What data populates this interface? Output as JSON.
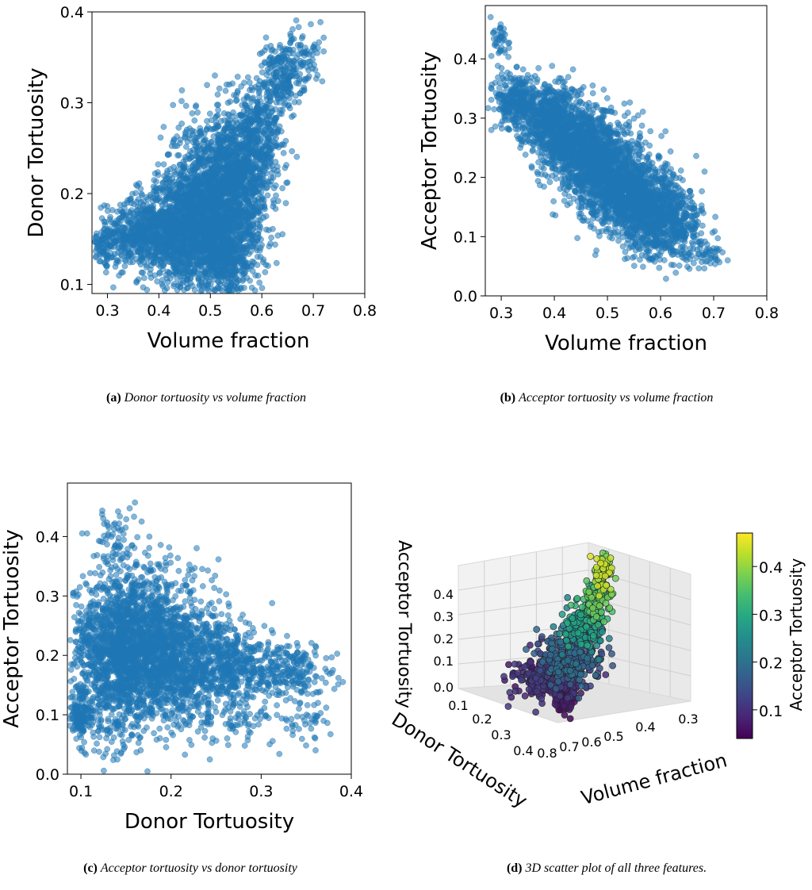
{
  "chart_data": [
    {
      "id": "a",
      "type": "scatter",
      "xlabel": "Volume fraction",
      "ylabel": "Donor Tortuosity",
      "xlim": [
        0.27,
        0.8
      ],
      "ylim": [
        0.09,
        0.4
      ],
      "xticks": [
        "0.3",
        "0.4",
        "0.5",
        "0.6",
        "0.7",
        "0.8"
      ],
      "yticks": [
        "0.1",
        "0.2",
        "0.3",
        "0.4"
      ],
      "color": "#1f77b4",
      "cloud": [
        {
          "x": 0.295,
          "y": 0.14,
          "sx": 0.012,
          "sy": 0.012,
          "n": 60
        },
        {
          "x": 0.36,
          "y": 0.155,
          "sx": 0.04,
          "sy": 0.018,
          "n": 500
        },
        {
          "x": 0.44,
          "y": 0.16,
          "sx": 0.04,
          "sy": 0.03,
          "n": 900
        },
        {
          "x": 0.49,
          "y": 0.19,
          "sx": 0.04,
          "sy": 0.045,
          "n": 1100
        },
        {
          "x": 0.54,
          "y": 0.18,
          "sx": 0.035,
          "sy": 0.05,
          "n": 1000
        },
        {
          "x": 0.52,
          "y": 0.13,
          "sx": 0.025,
          "sy": 0.02,
          "n": 300
        },
        {
          "x": 0.57,
          "y": 0.23,
          "sx": 0.03,
          "sy": 0.03,
          "n": 400
        },
        {
          "x": 0.6,
          "y": 0.28,
          "sx": 0.025,
          "sy": 0.025,
          "n": 250
        },
        {
          "x": 0.64,
          "y": 0.33,
          "sx": 0.02,
          "sy": 0.022,
          "n": 200
        },
        {
          "x": 0.68,
          "y": 0.35,
          "sx": 0.02,
          "sy": 0.015,
          "n": 60
        }
      ]
    },
    {
      "id": "b",
      "type": "scatter",
      "xlabel": "Volume fraction",
      "ylabel": "Acceptor Tortuosity",
      "xlim": [
        0.27,
        0.8
      ],
      "ylim": [
        0.0,
        0.49
      ],
      "xticks": [
        "0.3",
        "0.4",
        "0.5",
        "0.6",
        "0.7",
        "0.8"
      ],
      "yticks": [
        "0.0",
        "0.1",
        "0.2",
        "0.3",
        "0.4"
      ],
      "color": "#1f77b4",
      "cloud": [
        {
          "x": 0.3,
          "y": 0.43,
          "sx": 0.008,
          "sy": 0.02,
          "n": 40
        },
        {
          "x": 0.33,
          "y": 0.33,
          "sx": 0.02,
          "sy": 0.025,
          "n": 300
        },
        {
          "x": 0.39,
          "y": 0.3,
          "sx": 0.03,
          "sy": 0.03,
          "n": 600
        },
        {
          "x": 0.45,
          "y": 0.25,
          "sx": 0.035,
          "sy": 0.035,
          "n": 900
        },
        {
          "x": 0.51,
          "y": 0.2,
          "sx": 0.035,
          "sy": 0.04,
          "n": 1000
        },
        {
          "x": 0.57,
          "y": 0.15,
          "sx": 0.035,
          "sy": 0.035,
          "n": 800
        },
        {
          "x": 0.62,
          "y": 0.12,
          "sx": 0.03,
          "sy": 0.03,
          "n": 400
        },
        {
          "x": 0.69,
          "y": 0.07,
          "sx": 0.015,
          "sy": 0.012,
          "n": 50
        }
      ]
    },
    {
      "id": "c",
      "type": "scatter",
      "xlabel": "Donor Tortuosity",
      "ylabel": "Acceptor Tortuosity",
      "xlim": [
        0.085,
        0.4
      ],
      "ylim": [
        0.0,
        0.49
      ],
      "xticks": [
        "0.1",
        "0.2",
        "0.3",
        "0.4"
      ],
      "yticks": [
        "0.0",
        "0.1",
        "0.2",
        "0.3",
        "0.4"
      ],
      "color": "#1f77b4",
      "cloud": [
        {
          "x": 0.1,
          "y": 0.1,
          "sx": 0.006,
          "sy": 0.02,
          "n": 150
        },
        {
          "x": 0.14,
          "y": 0.2,
          "sx": 0.025,
          "sy": 0.07,
          "n": 1300
        },
        {
          "x": 0.18,
          "y": 0.22,
          "sx": 0.03,
          "sy": 0.06,
          "n": 1100
        },
        {
          "x": 0.22,
          "y": 0.18,
          "sx": 0.03,
          "sy": 0.05,
          "n": 700
        },
        {
          "x": 0.27,
          "y": 0.18,
          "sx": 0.02,
          "sy": 0.035,
          "n": 300
        },
        {
          "x": 0.33,
          "y": 0.17,
          "sx": 0.025,
          "sy": 0.025,
          "n": 250
        },
        {
          "x": 0.14,
          "y": 0.4,
          "sx": 0.012,
          "sy": 0.035,
          "n": 60
        },
        {
          "x": 0.35,
          "y": 0.08,
          "sx": 0.015,
          "sy": 0.02,
          "n": 40
        },
        {
          "x": 0.28,
          "y": 0.09,
          "sx": 0.02,
          "sy": 0.015,
          "n": 50
        }
      ]
    },
    {
      "id": "d",
      "type": "scatter",
      "projection": "3d",
      "xlabel": "Volume fraction",
      "ylabel": "Donor Tortuosity",
      "zlabel": "Acceptor Tortuosity",
      "xticks": [
        "0.8",
        "0.7",
        "0.6",
        "0.5",
        "0.4",
        "0.3"
      ],
      "yticks": [
        "0.1",
        "0.2",
        "0.3",
        "0.4"
      ],
      "zticks": [
        "0.0",
        "0.1",
        "0.2",
        "0.3",
        "0.4"
      ],
      "colorbar_label": "Acceptor Tortuosity",
      "colorbar_ticks": [
        "0.1",
        "0.2",
        "0.3",
        "0.4"
      ],
      "colormap": "viridis",
      "clim": [
        0.04,
        0.47
      ]
    }
  ],
  "captions": [
    {
      "tag": "(a)",
      "text": "Donor tortuosity vs volume fraction"
    },
    {
      "tag": "(b)",
      "text": "Acceptor tortuosity vs volume fraction"
    },
    {
      "tag": "(c)",
      "text": "Acceptor tortuosity vs donor tortuosity"
    },
    {
      "tag": "(d)",
      "text": "3D scatter plot of all three features."
    }
  ]
}
